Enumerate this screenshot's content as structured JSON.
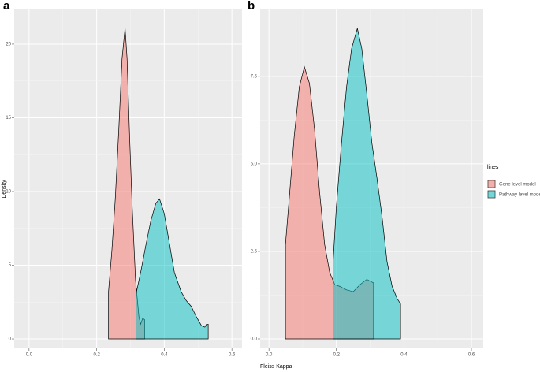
{
  "chart_data": [
    {
      "type": "density",
      "panel": "a",
      "xlim": [
        -0.044,
        0.63
      ],
      "ylim": [
        -0.64,
        22.35
      ],
      "xticks": [
        {
          "value": 0,
          "label": "0.0"
        },
        0.2,
        0.4,
        0.6
      ],
      "yticks": [
        0,
        5,
        10,
        15,
        20
      ],
      "grid": true,
      "series": [
        {
          "name": "Gene level model",
          "color": "#F8766D",
          "x": [
            0.235,
            0.245,
            0.255,
            0.265,
            0.275,
            0.284,
            0.29,
            0.297,
            0.305,
            0.315,
            0.325,
            0.33,
            0.336,
            0.342
          ],
          "values": [
            3.2,
            6,
            9.5,
            14,
            19,
            21.1,
            19,
            14,
            9,
            4,
            1.5,
            1.0,
            1.4,
            1.3
          ]
        },
        {
          "name": "Pathway level model",
          "color": "#00BFC4",
          "x": [
            0.316,
            0.33,
            0.345,
            0.36,
            0.375,
            0.386,
            0.4,
            0.415,
            0.43,
            0.45,
            0.465,
            0.48,
            0.495,
            0.51,
            0.52,
            0.525,
            0.53
          ],
          "values": [
            3.0,
            4.5,
            6.3,
            8,
            9.2,
            9.5,
            8.5,
            6.5,
            4.5,
            3.2,
            2.6,
            2.2,
            1.5,
            0.9,
            0.8,
            1.0,
            1.0
          ]
        }
      ]
    },
    {
      "type": "density",
      "panel": "b",
      "xlim": [
        -0.026,
        0.635
      ],
      "ylim": [
        -0.27,
        9.41
      ],
      "xticks": [
        {
          "value": 0,
          "label": "0.0"
        },
        0.2,
        0.4,
        0.6
      ],
      "yticks": [
        {
          "value": 0,
          "label": "0.0"
        },
        2.5,
        {
          "value": 5,
          "label": "5.0"
        },
        7.5
      ],
      "grid": true,
      "series": [
        {
          "name": "Gene level model",
          "color": "#F8766D",
          "x": [
            0.049,
            0.06,
            0.075,
            0.09,
            0.105,
            0.12,
            0.135,
            0.15,
            0.165,
            0.18,
            0.195,
            0.21,
            0.23,
            0.25,
            0.27,
            0.29,
            0.31
          ],
          "values": [
            2.7,
            4,
            5.8,
            7.2,
            7.77,
            7.3,
            6,
            4.2,
            2.7,
            1.9,
            1.55,
            1.5,
            1.4,
            1.35,
            1.55,
            1.7,
            1.6
          ]
        },
        {
          "name": "Pathway level model",
          "color": "#00BFC4",
          "x": [
            0.19,
            0.2,
            0.215,
            0.23,
            0.245,
            0.262,
            0.275,
            0.29,
            0.305,
            0.32,
            0.335,
            0.35,
            0.365,
            0.38,
            0.39
          ],
          "values": [
            2.2,
            3.8,
            5.6,
            7.2,
            8.3,
            8.87,
            8.3,
            7,
            5.6,
            4.6,
            3.5,
            2.2,
            1.5,
            1.15,
            1.0
          ]
        }
      ]
    }
  ],
  "xlabel": "Fleiss Kappa",
  "ylabel": "Density",
  "legend_title": "lines"
}
